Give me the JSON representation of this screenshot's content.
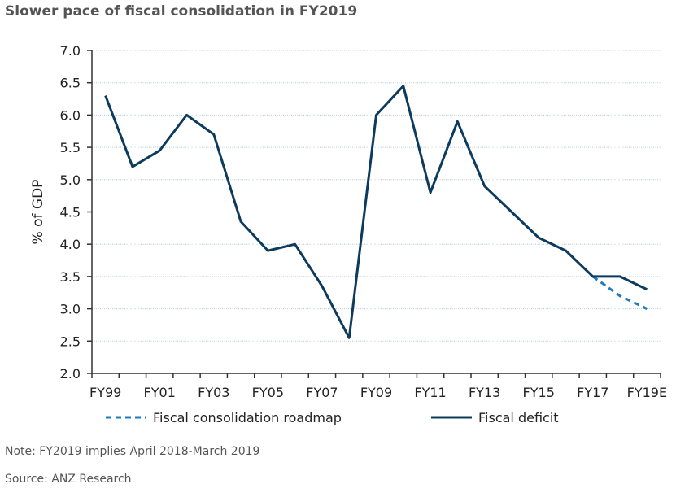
{
  "chart_data": {
    "type": "line",
    "title": "Slower pace of fiscal consolidation in FY2019",
    "ylabel": "% of GDP",
    "xlabel": "",
    "ylim": [
      2.0,
      7.0
    ],
    "yticks": [
      "2.0",
      "2.5",
      "3.0",
      "3.5",
      "4.0",
      "4.5",
      "5.0",
      "5.5",
      "6.0",
      "6.5",
      "7.0"
    ],
    "categories": [
      "FY99",
      "FY00",
      "FY01",
      "FY02",
      "FY03",
      "FY04",
      "FY05",
      "FY06",
      "FY07",
      "FY08",
      "FY09",
      "FY10",
      "FY11",
      "FY12",
      "FY13",
      "FY14",
      "FY15",
      "FY16",
      "FY17",
      "FY18",
      "FY19E"
    ],
    "xtick_labels": [
      "FY99",
      "",
      "FY01",
      "",
      "FY03",
      "",
      "FY05",
      "",
      "FY07",
      "",
      "FY09",
      "",
      "FY11",
      "",
      "FY13",
      "",
      "FY15",
      "",
      "FY17",
      "",
      "FY19E"
    ],
    "grid": true,
    "legend_position": "bottom",
    "series": [
      {
        "name": "Fiscal consolidation roadmap",
        "style": "dashed",
        "color": "#1f7bbf",
        "values": [
          null,
          null,
          null,
          null,
          null,
          null,
          null,
          null,
          null,
          null,
          null,
          null,
          null,
          null,
          null,
          null,
          null,
          null,
          3.5,
          3.2,
          3.0
        ]
      },
      {
        "name": "Fiscal deficit",
        "style": "solid",
        "color": "#0d3b5e",
        "values": [
          6.3,
          5.2,
          5.45,
          6.0,
          5.7,
          4.35,
          3.9,
          4.0,
          3.35,
          2.55,
          6.0,
          6.45,
          4.8,
          5.9,
          4.9,
          4.5,
          4.1,
          3.9,
          3.5,
          3.5,
          3.3
        ]
      }
    ]
  },
  "notes": {
    "note": "Note: FY2019 implies April 2018-March 2019",
    "source": "Source: ANZ Research"
  }
}
